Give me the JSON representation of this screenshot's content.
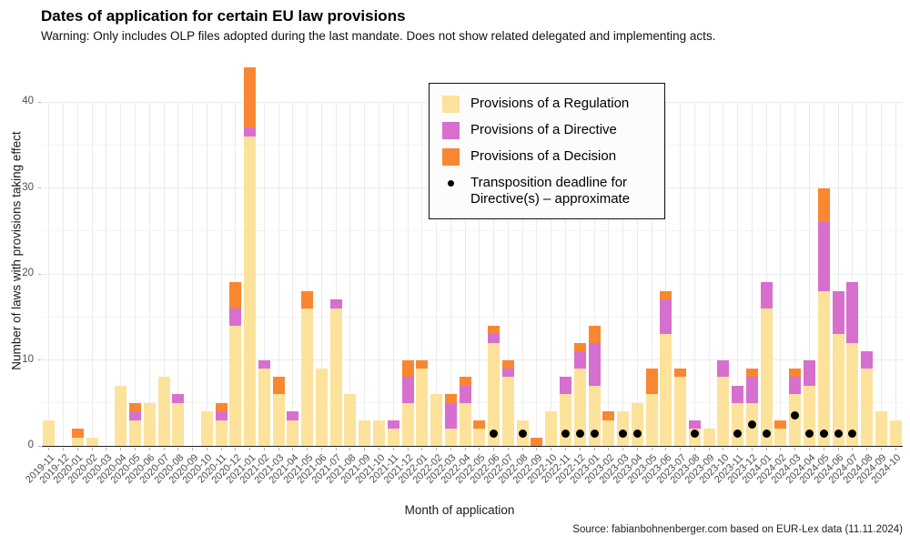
{
  "title": "Dates of application for certain EU law provisions",
  "subtitle": "Warning: Only includes OLP files adopted during the last mandate. Does not show related delegated and implementing acts.",
  "source": "Source: fabianbohnenberger.com based on EUR-Lex data (11.11.2024)",
  "chart_data": {
    "type": "bar",
    "stacked": true,
    "xlabel": "Month of application",
    "ylabel": "Number of laws with provisions taking effect",
    "ylim": [
      0,
      44
    ],
    "yticks": [
      0,
      10,
      20,
      30,
      40
    ],
    "grid": "on",
    "legend_position": "inside-top-center-box",
    "categories": [
      "2019-11",
      "2019-12",
      "2020-01",
      "2020-02",
      "2020-03",
      "2020-04",
      "2020-05",
      "2020-06",
      "2020-07",
      "2020-08",
      "2020-09",
      "2020-10",
      "2020-11",
      "2020-12",
      "2021-01",
      "2021-02",
      "2021-03",
      "2021-04",
      "2021-05",
      "2021-06",
      "2021-07",
      "2021-08",
      "2021-09",
      "2021-10",
      "2021-11",
      "2021-12",
      "2022-01",
      "2022-02",
      "2022-03",
      "2022-04",
      "2022-05",
      "2022-06",
      "2022-07",
      "2022-08",
      "2022-09",
      "2022-10",
      "2022-11",
      "2022-12",
      "2023-01",
      "2023-02",
      "2023-03",
      "2023-04",
      "2023-05",
      "2023-06",
      "2023-07",
      "2023-08",
      "2023-09",
      "2023-10",
      "2023-11",
      "2023-12",
      "2024-01",
      "2024-02",
      "2024-03",
      "2024-04",
      "2024-05",
      "2024-06",
      "2024-07",
      "2024-08",
      "2024-09",
      "2024-10"
    ],
    "series": [
      {
        "name": "Provisions of a Regulation",
        "color": "#FCE29B",
        "values": [
          3,
          0,
          1,
          1,
          0,
          7,
          3,
          5,
          8,
          5,
          0,
          4,
          3,
          14,
          36,
          9,
          6,
          3,
          16,
          9,
          16,
          6,
          3,
          3,
          2,
          5,
          9,
          6,
          2,
          5,
          2,
          12,
          8,
          3,
          0,
          4,
          6,
          9,
          7,
          3,
          4,
          5,
          6,
          13,
          8,
          2,
          2,
          8,
          5,
          5,
          16,
          2,
          6,
          7,
          18,
          13,
          12,
          9,
          4,
          3
        ]
      },
      {
        "name": "Provisions of a Directive",
        "color": "#D76FCE",
        "values": [
          0,
          0,
          0,
          0,
          0,
          0,
          1,
          0,
          0,
          1,
          0,
          0,
          1,
          2,
          1,
          1,
          0,
          1,
          0,
          0,
          1,
          0,
          0,
          0,
          1,
          3,
          0,
          0,
          3,
          2,
          0,
          1,
          1,
          0,
          0,
          0,
          2,
          2,
          5,
          0,
          0,
          0,
          0,
          4,
          0,
          1,
          0,
          2,
          2,
          3,
          3,
          0,
          2,
          3,
          8,
          5,
          7,
          2,
          0,
          0
        ]
      },
      {
        "name": "Provisions of a Decision",
        "color": "#F98731",
        "values": [
          0,
          0,
          1,
          0,
          0,
          0,
          1,
          0,
          0,
          0,
          0,
          0,
          1,
          3,
          7,
          0,
          2,
          0,
          2,
          0,
          0,
          0,
          0,
          0,
          0,
          2,
          1,
          0,
          1,
          1,
          1,
          1,
          1,
          0,
          1,
          0,
          0,
          1,
          2,
          1,
          0,
          0,
          3,
          1,
          1,
          0,
          0,
          0,
          0,
          1,
          0,
          1,
          1,
          0,
          4,
          0,
          0,
          0,
          0,
          0
        ]
      }
    ],
    "points": {
      "name": "Transposition deadline for Directive(s) – approximate",
      "color": "#000000",
      "data": [
        {
          "x": "2022-06",
          "y": 1.4
        },
        {
          "x": "2022-08",
          "y": 1.4
        },
        {
          "x": "2022-11",
          "y": 1.4
        },
        {
          "x": "2022-12",
          "y": 1.4
        },
        {
          "x": "2023-01",
          "y": 1.4
        },
        {
          "x": "2023-03",
          "y": 1.4
        },
        {
          "x": "2023-04",
          "y": 1.4
        },
        {
          "x": "2023-08",
          "y": 1.4
        },
        {
          "x": "2023-11",
          "y": 1.4
        },
        {
          "x": "2023-12",
          "y": 2.5
        },
        {
          "x": "2024-01",
          "y": 1.4
        },
        {
          "x": "2024-03",
          "y": 3.5
        },
        {
          "x": "2024-04",
          "y": 1.4
        },
        {
          "x": "2024-05",
          "y": 1.4
        },
        {
          "x": "2024-06",
          "y": 1.4
        },
        {
          "x": "2024-07",
          "y": 1.4
        }
      ]
    }
  }
}
